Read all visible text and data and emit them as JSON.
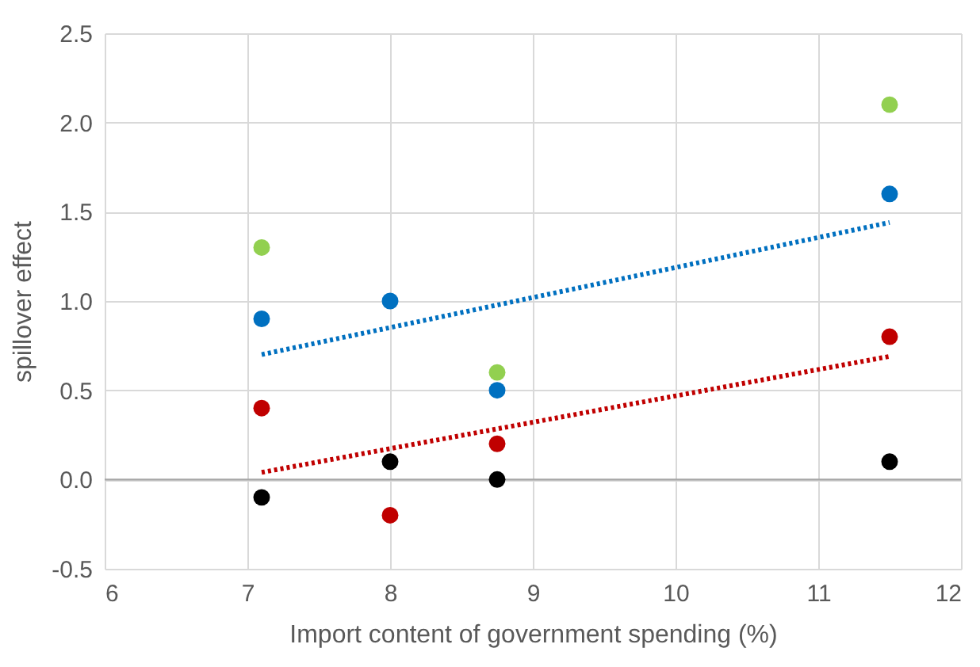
{
  "chart_data": {
    "type": "scatter",
    "xlabel": "Import content of government spending (%)",
    "ylabel": "spillover effect",
    "xlim": [
      6,
      12
    ],
    "xticks": [
      6,
      7,
      8,
      9,
      10,
      11,
      12
    ],
    "ylim": [
      -0.5,
      2.5
    ],
    "yticks": [
      -0.5,
      {
        "value": 0,
        "label": "0.0"
      },
      0.5,
      {
        "value": 1,
        "label": "1.0"
      },
      1.5,
      {
        "value": 2,
        "label": "2.0"
      },
      2.5
    ],
    "grid": true,
    "marker": "circle",
    "line_style": "dotted",
    "ref_lines": [
      {
        "axis": "y",
        "value": 0,
        "color": "#a6a6a6"
      }
    ],
    "series": [
      {
        "color": "#92d050",
        "x": [
          7.1,
          8.75,
          11.5
        ],
        "values": [
          1.3,
          0.6,
          2.1
        ]
      },
      {
        "color": "#0070c0",
        "x": [
          7.1,
          8.0,
          8.75,
          11.5
        ],
        "values": [
          0.9,
          1.0,
          0.5,
          1.6
        ]
      },
      {
        "color": "#c00000",
        "x": [
          7.1,
          8.0,
          8.75,
          11.5
        ],
        "values": [
          0.4,
          -0.2,
          0.2,
          0.8
        ]
      },
      {
        "color": "#000000",
        "x": [
          7.1,
          8.0,
          8.75,
          11.5
        ],
        "values": [
          -0.1,
          0.1,
          0.0,
          0.1
        ]
      },
      {
        "type": "line",
        "marker": "none",
        "color": "#0070c0",
        "x": [
          7.1,
          11.5
        ],
        "values": [
          0.7,
          1.44
        ]
      },
      {
        "type": "line",
        "marker": "none",
        "color": "#c00000",
        "x": [
          7.1,
          11.5
        ],
        "values": [
          0.04,
          0.69
        ]
      }
    ]
  }
}
